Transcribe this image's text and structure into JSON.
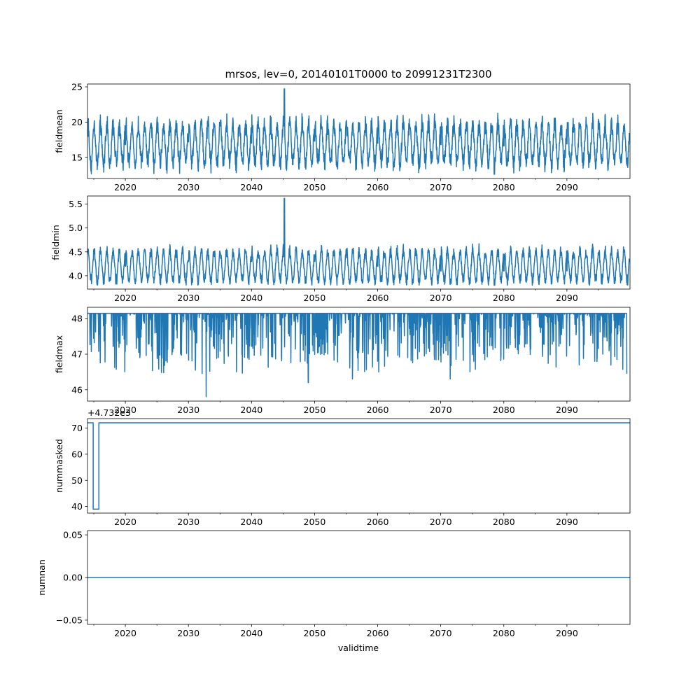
{
  "figure_title": "mrsos, lev=0, 20140101T0000 to 20991231T2300",
  "x_axis": {
    "label": "validtime",
    "range": [
      2014.0,
      2100.0
    ],
    "major_ticks": [
      2020,
      2030,
      2040,
      2050,
      2060,
      2070,
      2080,
      2090
    ],
    "minor_step": 5
  },
  "line_color": "#1f77b4",
  "chart_data": [
    {
      "type": "line",
      "ylabel": "fieldmean",
      "ylim": [
        12.0,
        25.4
      ],
      "yticks": [
        "15",
        "20",
        "25"
      ],
      "ytick_values": [
        15,
        20,
        25
      ],
      "baseline": 16.9,
      "seasonal_amplitude": 3.1,
      "noise": 0.9,
      "min": 12.6,
      "max": 24.7,
      "x": [
        2014.0,
        2020.0,
        2030.0,
        2040.0,
        2045.2,
        2050.0,
        2060.0,
        2070.0,
        2078.5,
        2080.0,
        2090.0,
        2099.9
      ],
      "y": [
        17.5,
        16.8,
        17.2,
        17.0,
        24.7,
        17.3,
        17.0,
        16.8,
        12.6,
        16.6,
        16.9,
        17.2
      ]
    },
    {
      "type": "line",
      "ylabel": "fieldmin",
      "ylim": [
        3.72,
        5.67
      ],
      "yticks": [
        "4.0",
        "4.5",
        "5.0",
        "5.5"
      ],
      "ytick_values": [
        4.0,
        4.5,
        5.0,
        5.5
      ],
      "baseline": 4.2,
      "seasonal_amplitude": 0.35,
      "noise": 0.06,
      "min": 3.8,
      "max": 5.62,
      "x": [
        2014.0,
        2020.0,
        2030.0,
        2040.0,
        2045.2,
        2050.0,
        2060.0,
        2070.0,
        2078.5,
        2080.0,
        2090.0,
        2099.9
      ],
      "y": [
        4.2,
        4.2,
        4.3,
        4.3,
        5.62,
        4.3,
        4.2,
        4.1,
        3.8,
        4.1,
        4.1,
        4.1
      ]
    },
    {
      "type": "line",
      "ylabel": "fieldmax",
      "ylim": [
        45.68,
        48.32
      ],
      "yticks": [
        "46",
        "47",
        "48"
      ],
      "ytick_values": [
        46,
        47,
        48
      ],
      "baseline": 48.15,
      "min": 45.8,
      "max": 48.15,
      "x": [
        2014.0,
        2032.8,
        2049.0,
        2056.0,
        2071.5,
        2099.5
      ],
      "y": [
        48.15,
        45.8,
        46.2,
        46.3,
        46.3,
        46.45
      ]
    },
    {
      "type": "line",
      "ylabel": "nummasked",
      "offset_label": "+4.732e3",
      "ylim": [
        37.5,
        73.6
      ],
      "yticks": [
        "40",
        "50",
        "60",
        "70"
      ],
      "ytick_values": [
        40,
        50,
        60,
        70
      ],
      "x": [
        2014.0,
        2014.9,
        2014.9,
        2015.8,
        2015.8,
        2100.0
      ],
      "y": [
        72,
        72,
        39,
        39,
        72,
        72
      ]
    },
    {
      "type": "line",
      "ylabel": "numnan",
      "ylim": [
        -0.055,
        0.055
      ],
      "yticks": [
        "0.05",
        "0.00",
        "−0.05"
      ],
      "ytick_values": [
        0.05,
        0.0,
        -0.05
      ],
      "x": [
        2014.0,
        2100.0
      ],
      "y": [
        0.0,
        0.0
      ]
    }
  ]
}
